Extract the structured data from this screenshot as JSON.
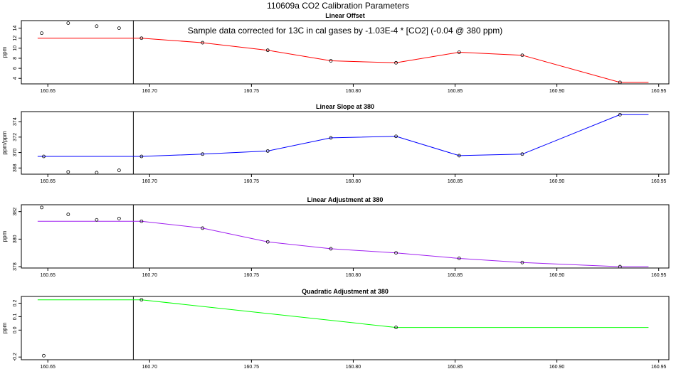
{
  "figure": {
    "title": "110609a   CO2 Calibration Parameters",
    "annotation": "Sample data corrected for 13C in cal gases by -1.03E-4 * [CO2] (-0.04 @ 380 ppm)"
  },
  "chart_data": [
    {
      "type": "line",
      "title": "Linear Offset",
      "xlabel": "",
      "ylabel": "ppm",
      "xlim": [
        160.637,
        160.955
      ],
      "ylim": [
        2.9,
        15.5
      ],
      "xticks": [
        160.65,
        160.7,
        160.75,
        160.8,
        160.85,
        160.9,
        160.95
      ],
      "xtick_labels": [
        "160.65",
        "160.70",
        "160.75",
        "160.80",
        "160.85",
        "160.90",
        "160.95"
      ],
      "yticks": [
        4,
        6,
        8,
        10,
        12,
        14
      ],
      "ytick_labels": [
        "4",
        "6",
        "8",
        "10",
        "12",
        "14"
      ],
      "vline_x": 160.692,
      "line_color": "#ff0000",
      "line": {
        "x": [
          160.645,
          160.696,
          160.726,
          160.758,
          160.789,
          160.821,
          160.852,
          160.883,
          160.931,
          160.945
        ],
        "y": [
          12.0,
          12.0,
          11.1,
          9.6,
          7.5,
          7.1,
          9.2,
          8.6,
          3.2,
          3.2
        ]
      },
      "points": {
        "x": [
          160.647,
          160.66,
          160.674,
          160.685,
          160.696,
          160.726,
          160.758,
          160.789,
          160.821,
          160.852,
          160.883,
          160.931
        ],
        "y": [
          13.0,
          15.0,
          14.4,
          14.0,
          12.0,
          11.1,
          9.6,
          7.5,
          7.1,
          9.2,
          8.6,
          3.2
        ]
      }
    },
    {
      "type": "line",
      "title": "Linear Slope at 380",
      "xlabel": "",
      "ylabel": "ppm/ppm",
      "xlim": [
        160.637,
        160.955
      ],
      "ylim": [
        367.2,
        375.3
      ],
      "xticks": [
        160.65,
        160.7,
        160.75,
        160.8,
        160.85,
        160.9,
        160.95
      ],
      "xtick_labels": [
        "160.65",
        "160.70",
        "160.75",
        "160.80",
        "160.85",
        "160.90",
        "160.95"
      ],
      "yticks": [
        368,
        370,
        372,
        374
      ],
      "ytick_labels": [
        "368",
        "370",
        "372",
        "374"
      ],
      "vline_x": 160.692,
      "line_color": "#0000ff",
      "line": {
        "x": [
          160.645,
          160.696,
          160.726,
          160.758,
          160.789,
          160.821,
          160.852,
          160.883,
          160.931,
          160.945
        ],
        "y": [
          369.5,
          369.5,
          369.8,
          370.2,
          371.9,
          372.1,
          369.6,
          369.8,
          374.9,
          374.9
        ]
      },
      "points": {
        "x": [
          160.648,
          160.66,
          160.674,
          160.685,
          160.696,
          160.726,
          160.758,
          160.789,
          160.821,
          160.852,
          160.883,
          160.931
        ],
        "y": [
          369.5,
          367.5,
          367.4,
          367.7,
          369.5,
          369.8,
          370.2,
          371.9,
          372.1,
          369.6,
          369.8,
          374.9
        ]
      }
    },
    {
      "type": "line",
      "title": "Linear Adjustment at 380",
      "xlabel": "",
      "ylabel": "ppm",
      "xlim": [
        160.637,
        160.955
      ],
      "ylim": [
        377.9,
        382.5
      ],
      "xticks": [
        160.65,
        160.7,
        160.75,
        160.8,
        160.85,
        160.9,
        160.95
      ],
      "xtick_labels": [
        "160.65",
        "160.70",
        "160.75",
        "160.80",
        "160.85",
        "160.90",
        "160.95"
      ],
      "yticks": [
        378,
        380,
        382
      ],
      "ytick_labels": [
        "378",
        "380",
        "382"
      ],
      "vline_x": 160.692,
      "line_color": "#a020f0",
      "line": {
        "x": [
          160.645,
          160.696,
          160.726,
          160.758,
          160.789,
          160.821,
          160.852,
          160.883,
          160.931,
          160.945
        ],
        "y": [
          381.3,
          381.3,
          380.8,
          379.8,
          379.3,
          379.0,
          378.6,
          378.3,
          378.0,
          378.0
        ]
      },
      "points": {
        "x": [
          160.647,
          160.66,
          160.674,
          160.685,
          160.696,
          160.726,
          160.758,
          160.789,
          160.821,
          160.852,
          160.883,
          160.931
        ],
        "y": [
          382.3,
          381.8,
          381.4,
          381.5,
          381.3,
          380.8,
          379.8,
          379.3,
          379.0,
          378.6,
          378.3,
          378.0
        ]
      }
    },
    {
      "type": "line",
      "title": "Quadratic Adjustment at 380",
      "xlabel": "",
      "ylabel": "ppm",
      "xlim": [
        160.637,
        160.955
      ],
      "ylim": [
        -0.22,
        0.25
      ],
      "xticks": [
        160.65,
        160.7,
        160.75,
        160.8,
        160.85,
        160.9,
        160.95
      ],
      "xtick_labels": [
        "160.65",
        "160.70",
        "160.75",
        "160.80",
        "160.85",
        "160.90",
        "160.95"
      ],
      "yticks": [
        -0.2,
        0.0,
        0.1,
        0.2
      ],
      "ytick_labels": [
        "-0.2",
        "0.0",
        "0.1",
        "0.2"
      ],
      "vline_x": 160.692,
      "line_color": "#00ff00",
      "line": {
        "x": [
          160.645,
          160.696,
          160.821,
          160.945
        ],
        "y": [
          0.225,
          0.225,
          0.02,
          0.02
        ]
      },
      "points": {
        "x": [
          160.648,
          160.696,
          160.821
        ],
        "y": [
          -0.19,
          0.225,
          0.02
        ]
      }
    }
  ]
}
